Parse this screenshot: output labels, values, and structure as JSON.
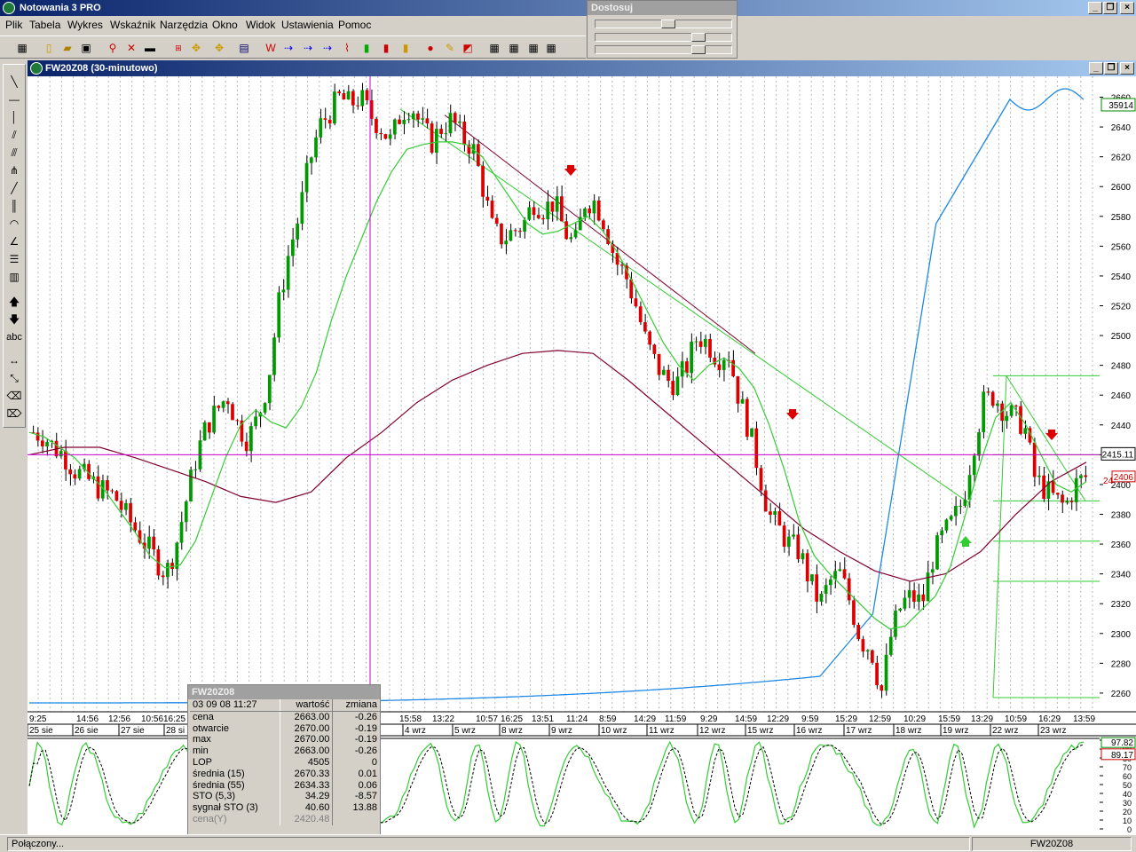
{
  "app": {
    "title": "Notowania 3 PRO"
  },
  "menu": [
    "Plik",
    "Tabela",
    "Wykres",
    "Wskaźnik",
    "Narzędzia",
    "Okno",
    "Widok",
    "Ustawienia",
    "Pomoc"
  ],
  "dostosuj": {
    "title": "Dostosuj",
    "sliders": [
      0.55,
      0.8,
      0.8
    ]
  },
  "chart_window": {
    "title": "FW20Z08 (30-minutowo)"
  },
  "price_axis": {
    "ticks": [
      "2660",
      "2640",
      "2620",
      "2600",
      "2580",
      "2560",
      "2540",
      "2520",
      "2500",
      "2480",
      "2460",
      "2440",
      "2420",
      "2400",
      "2380",
      "2360",
      "2340",
      "2320",
      "2300",
      "2280",
      "2260"
    ],
    "box_top": "35914",
    "cursor_label": "2415.11",
    "last_label": "2406",
    "last_label_under": "24"
  },
  "time_axis": {
    "times": [
      "9:25",
      "14:56",
      "12:56",
      "10:56",
      "16:25",
      "15:58",
      "13:22",
      "10:57",
      "16:25",
      "13:51",
      "11:24",
      "8:59",
      "14:29",
      "11:59",
      "9:29",
      "14:59",
      "12:29",
      "9:59",
      "15:29",
      "12:59",
      "10:29",
      "15:59",
      "13:29",
      "10:59",
      "16:29",
      "13:59"
    ],
    "dates": [
      "25 sie",
      "26 sie",
      "27 sie",
      "28 si",
      "4 wrz",
      "5 wrz",
      "8 wrz",
      "9 wrz",
      "10 wrz",
      "11 wrz",
      "12 wrz",
      "15 wrz",
      "16 wrz",
      "17 wrz",
      "18 wrz",
      "19 wrz",
      "22 wrz",
      "23 wrz"
    ]
  },
  "stochastic": {
    "labels": [
      "100",
      "90",
      "80",
      "70",
      "60",
      "50",
      "40",
      "30",
      "20",
      "10",
      "0"
    ],
    "value1": "97.82",
    "value2": "89.17"
  },
  "info_panel": {
    "title": "FW20Z08",
    "header": {
      "date": "03 09 08 11:27",
      "col1": "wartość",
      "col2": "zmiana"
    },
    "rows": [
      {
        "label": "cena",
        "value": "2663.00",
        "change": "-0.26"
      },
      {
        "label": "otwarcie",
        "value": "2670.00",
        "change": "-0.19"
      },
      {
        "label": "max",
        "value": "2670.00",
        "change": "-0.19"
      },
      {
        "label": "min",
        "value": "2663.00",
        "change": "-0.26"
      },
      {
        "label": "LOP",
        "value": "4505",
        "change": "0"
      },
      {
        "label": "średnia (15)",
        "value": "2670.33",
        "change": "0.01"
      },
      {
        "label": "średnia (55)",
        "value": "2634.33",
        "change": "0.06"
      },
      {
        "label": "STO (5,3)",
        "value": "34.29",
        "change": "-8.57"
      },
      {
        "label": "sygnał STO (3)",
        "value": "40.60",
        "change": "13.88"
      },
      {
        "label": "cena(Y)",
        "value": "2420.48",
        "change": ""
      }
    ]
  },
  "status": {
    "left": "Połączony...",
    "right": "FW20Z08"
  },
  "colors": {
    "title_start": "#0a246a",
    "title_end": "#a6caf0",
    "candle_up": "#009900",
    "candle_down": "#dd0000",
    "ma15": "#33cc33",
    "ma55": "#800030",
    "lop": "#1e88e5",
    "cursor": "#cc00cc"
  },
  "chart_data": {
    "type": "candlestick",
    "instrument": "FW20Z08",
    "interval": "30-minutowo",
    "ylim": [
      2250,
      2670
    ],
    "close_path": [
      2435,
      2433,
      2425,
      2420,
      2410,
      2405,
      2400,
      2395,
      2392,
      2380,
      2370,
      2360,
      2350,
      2340,
      2360,
      2390,
      2420,
      2440,
      2450,
      2460,
      2440,
      2430,
      2445,
      2470,
      2520,
      2555,
      2580,
      2615,
      2640,
      2650,
      2660,
      2655,
      2660,
      2648,
      2640,
      2630,
      2650,
      2655,
      2640,
      2630,
      2640,
      2645,
      2632,
      2627,
      2600,
      2570,
      2565,
      2570,
      2575,
      2590,
      2585,
      2590,
      2570,
      2560,
      2590,
      2590,
      2575,
      2550,
      2540,
      2520,
      2495,
      2480,
      2470,
      2468,
      2480,
      2500,
      2495,
      2485,
      2490,
      2460,
      2438,
      2410,
      2380,
      2370,
      2360,
      2355,
      2335,
      2320,
      2335,
      2340,
      2320,
      2295,
      2290,
      2260,
      2300,
      2320,
      2325,
      2320,
      2350,
      2365,
      2375,
      2390,
      2425,
      2455,
      2460,
      2450,
      2445,
      2440,
      2405,
      2397,
      2390,
      2385,
      2400,
      2405
    ],
    "ma15_path": [
      2435,
      2432,
      2425,
      2418,
      2407,
      2396,
      2382,
      2368,
      2352,
      2344,
      2346,
      2362,
      2390,
      2418,
      2440,
      2450,
      2442,
      2438,
      2452,
      2475,
      2510,
      2540,
      2565,
      2590,
      2610,
      2625,
      2628,
      2630,
      2630,
      2628,
      2620,
      2605,
      2590,
      2575,
      2568,
      2570,
      2575,
      2580,
      2570,
      2555,
      2535,
      2515,
      2495,
      2480,
      2470,
      2480,
      2485,
      2478,
      2465,
      2440,
      2410,
      2375,
      2352,
      2340,
      2330,
      2320,
      2310,
      2303,
      2305,
      2315,
      2325,
      2345,
      2380,
      2415,
      2445,
      2455,
      2440,
      2420,
      2400,
      2395,
      2402
    ],
    "ma55_path": [
      2420,
      2425,
      2425,
      2418,
      2410,
      2402,
      2392,
      2388,
      2395,
      2418,
      2435,
      2455,
      2470,
      2480,
      2488,
      2490,
      2488,
      2470,
      2450,
      2430,
      2410,
      2390,
      2370,
      2355,
      2342,
      2335,
      2340,
      2355,
      2380,
      2402,
      2415
    ],
    "trendlines": [
      [
        2650,
        2390
      ],
      [
        2655,
        2450
      ]
    ],
    "fib_levels": [
      2473,
      2420,
      2389,
      2362,
      2335,
      2257
    ],
    "crosshair": {
      "price": 2420
    }
  }
}
